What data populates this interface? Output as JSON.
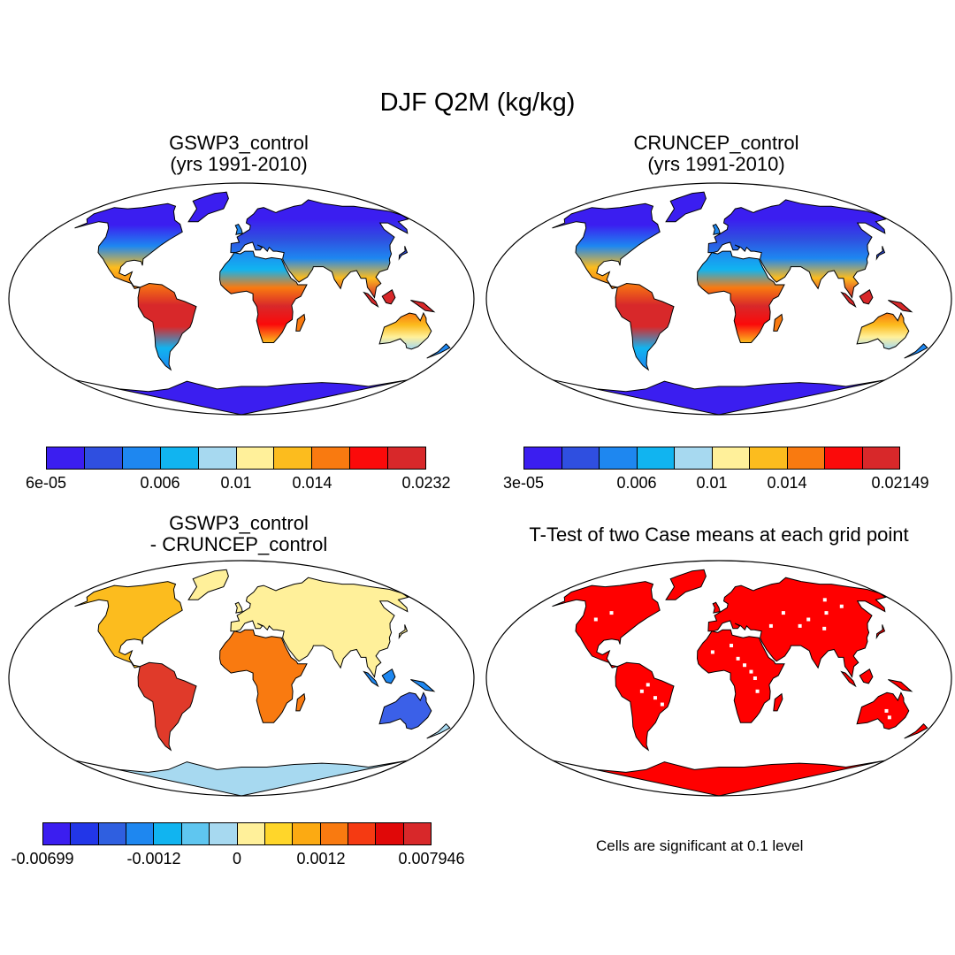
{
  "title": "DJF Q2M (kg/kg)",
  "panels": [
    {
      "title_line1": "GSWP3_control",
      "title_line2": "(yrs 1991-2010)",
      "ticks": [
        "6e-05",
        "0.006",
        "0.01",
        "0.014",
        "0.0232"
      ],
      "colors": [
        "#3b1ef0",
        "#2f4fe0",
        "#1e87f0",
        "#11b4f0",
        "#a7d9f0",
        "#fff09a",
        "#fcbc1e",
        "#f97a10",
        "#fb0a0a",
        "#d8282a"
      ],
      "mode": "absolute"
    },
    {
      "title_line1": "CRUNCEP_control",
      "title_line2": "(yrs 1991-2010)",
      "ticks": [
        "3e-05",
        "0.006",
        "0.01",
        "0.014",
        "0.02149"
      ],
      "colors": [
        "#3b1ef0",
        "#2f4fe0",
        "#1e87f0",
        "#11b4f0",
        "#a7d9f0",
        "#fff09a",
        "#fcbc1e",
        "#f97a10",
        "#fb0a0a",
        "#d8282a"
      ],
      "mode": "absolute"
    },
    {
      "title_line1": "GSWP3_control",
      "title_line2": "- CRUNCEP_control",
      "ticks": [
        "-0.00699",
        "-0.0012",
        "0",
        "0.0012",
        "0.007946"
      ],
      "colors": [
        "#3b1ef0",
        "#2236e8",
        "#2f5fe0",
        "#1e87f0",
        "#11b4f0",
        "#5fc6f0",
        "#a7d9f0",
        "#fff09a",
        "#ffd62a",
        "#fcaa12",
        "#f97a10",
        "#f53a12",
        "#e00808",
        "#d8282a"
      ],
      "mode": "difference"
    },
    {
      "title_line1": "T-Test of two Case means at each grid point",
      "note": "Cells are significant at 0.1 level",
      "colors": [
        "#ff0000"
      ],
      "mode": "ttest"
    }
  ]
}
